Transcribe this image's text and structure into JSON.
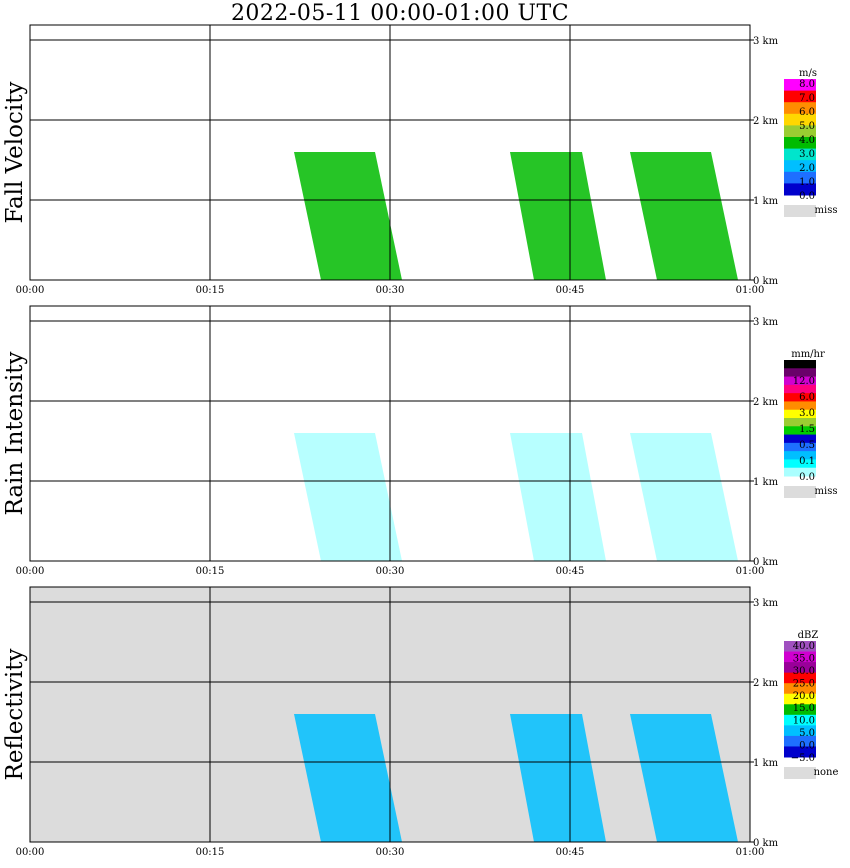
{
  "title": "2022-05-11   00:00-01:00 UTC",
  "chart_data": [
    {
      "type": "heatmap",
      "ylabel": "Fall Velocity",
      "xticks": [
        "00:00",
        "00:15",
        "00:30",
        "00:45",
        "01:00"
      ],
      "yticks": [
        "0 km",
        "1 km",
        "2 km",
        "3 km"
      ],
      "legend": {
        "unit": "m/s",
        "labels": [
          "8.0",
          "7.0",
          "6.0",
          "5.0",
          "4.0",
          "3.0",
          "2.0",
          "1.0",
          "0.0",
          "miss"
        ],
        "colors": [
          "#ff00ff",
          "#ff0000",
          "#ff8c00",
          "#ffd700",
          "#9acd32",
          "#00bb00",
          "#00e5cc",
          "#00bfff",
          "#1e6fff",
          "#0000cc",
          "#dcdcdc"
        ]
      },
      "background": "#ffffff",
      "bands": [
        {
          "t0": 22,
          "t1": 31,
          "h0": 0,
          "h1": 1.6,
          "color": "#00bb00"
        },
        {
          "t0": 40,
          "t1": 48,
          "h0": 0,
          "h1": 1.6,
          "color": "#00bb00"
        },
        {
          "t0": 50,
          "t1": 59,
          "h0": 0,
          "h1": 1.6,
          "color": "#00bb00"
        }
      ]
    },
    {
      "type": "heatmap",
      "ylabel": "Rain Intensity",
      "xticks": [
        "00:00",
        "00:15",
        "00:30",
        "00:45",
        "01:00"
      ],
      "yticks": [
        "0 km",
        "1 km",
        "2 km",
        "3 km"
      ],
      "legend": {
        "unit": "mm/hr",
        "labels": [
          "48.0",
          "12.0",
          "6.0",
          "3.0",
          "1.5",
          "0.5",
          "0.1",
          "0.0",
          "miss"
        ],
        "colors": [
          "#000000",
          "#6a006a",
          "#d000d0",
          "#ff0080",
          "#ff0000",
          "#ff8c00",
          "#ffff00",
          "#9acd32",
          "#00cc00",
          "#0000cc",
          "#1e6fff",
          "#00bfff",
          "#00ffff",
          "#aaffff",
          "#dcdcdc"
        ]
      },
      "background": "#ffffff",
      "bands": [
        {
          "t0": 22,
          "t1": 31,
          "h0": 0,
          "h1": 1.6,
          "color": "#aaffff"
        },
        {
          "t0": 40,
          "t1": 48,
          "h0": 0,
          "h1": 1.6,
          "color": "#aaffff"
        },
        {
          "t0": 50,
          "t1": 59,
          "h0": 0,
          "h1": 1.6,
          "color": "#aaffff"
        }
      ]
    },
    {
      "type": "heatmap",
      "ylabel": "Reflectivity",
      "xticks": [
        "00:00",
        "00:15",
        "00:30",
        "00:45",
        "01:00"
      ],
      "yticks": [
        "0 km",
        "1 km",
        "2 km",
        "3 km"
      ],
      "legend": {
        "unit": "dBZ",
        "labels": [
          "40.0",
          "35.0",
          "30.0",
          "25.0",
          "20.0",
          "15.0",
          "10.0",
          "5.0",
          "0.0",
          "−5.0",
          "none"
        ],
        "colors": [
          "#a050c0",
          "#d000d0",
          "#990099",
          "#ff0000",
          "#ff8c00",
          "#ffff00",
          "#00bb00",
          "#00ffff",
          "#00bfff",
          "#1e6fff",
          "#0000cc",
          "#dcdcdc"
        ]
      },
      "background": "#dcdcdc",
      "bands": [
        {
          "t0": 22,
          "t1": 31,
          "h0": 0,
          "h1": 1.6,
          "color": "#00bfff"
        },
        {
          "t0": 40,
          "t1": 48,
          "h0": 0,
          "h1": 1.6,
          "color": "#00bfff"
        },
        {
          "t0": 50,
          "t1": 59,
          "h0": 0,
          "h1": 1.6,
          "color": "#00bfff"
        }
      ]
    }
  ]
}
